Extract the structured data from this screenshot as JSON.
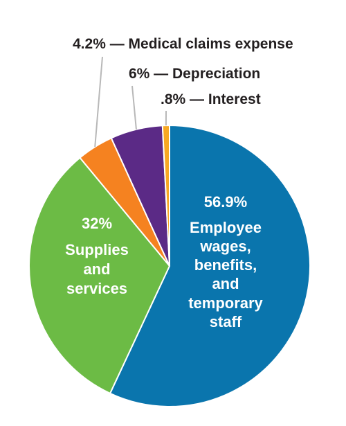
{
  "chart_data": {
    "type": "pie",
    "start_angle_deg": 0,
    "direction": "clockwise",
    "slices": [
      {
        "key": "wages",
        "value": 56.9,
        "color": "#0a75ad",
        "percent_label": "56.9%",
        "label_lines": [
          "Employee",
          "wages,",
          "benefits,",
          "and",
          "temporary",
          "staff"
        ]
      },
      {
        "key": "supplies",
        "value": 32,
        "color": "#6cbb45",
        "percent_label": "32%",
        "label_lines": [
          "Supplies",
          "and",
          "services"
        ]
      },
      {
        "key": "medical",
        "value": 4.2,
        "color": "#f58220",
        "label": "4.2% — Medical claims expense"
      },
      {
        "key": "depreciation",
        "value": 6,
        "color": "#5b2a86",
        "label": "6% — Depreciation"
      },
      {
        "key": "interest",
        "value": 0.8,
        "color": "#f7a823",
        "label": ".8% — Interest"
      }
    ]
  }
}
